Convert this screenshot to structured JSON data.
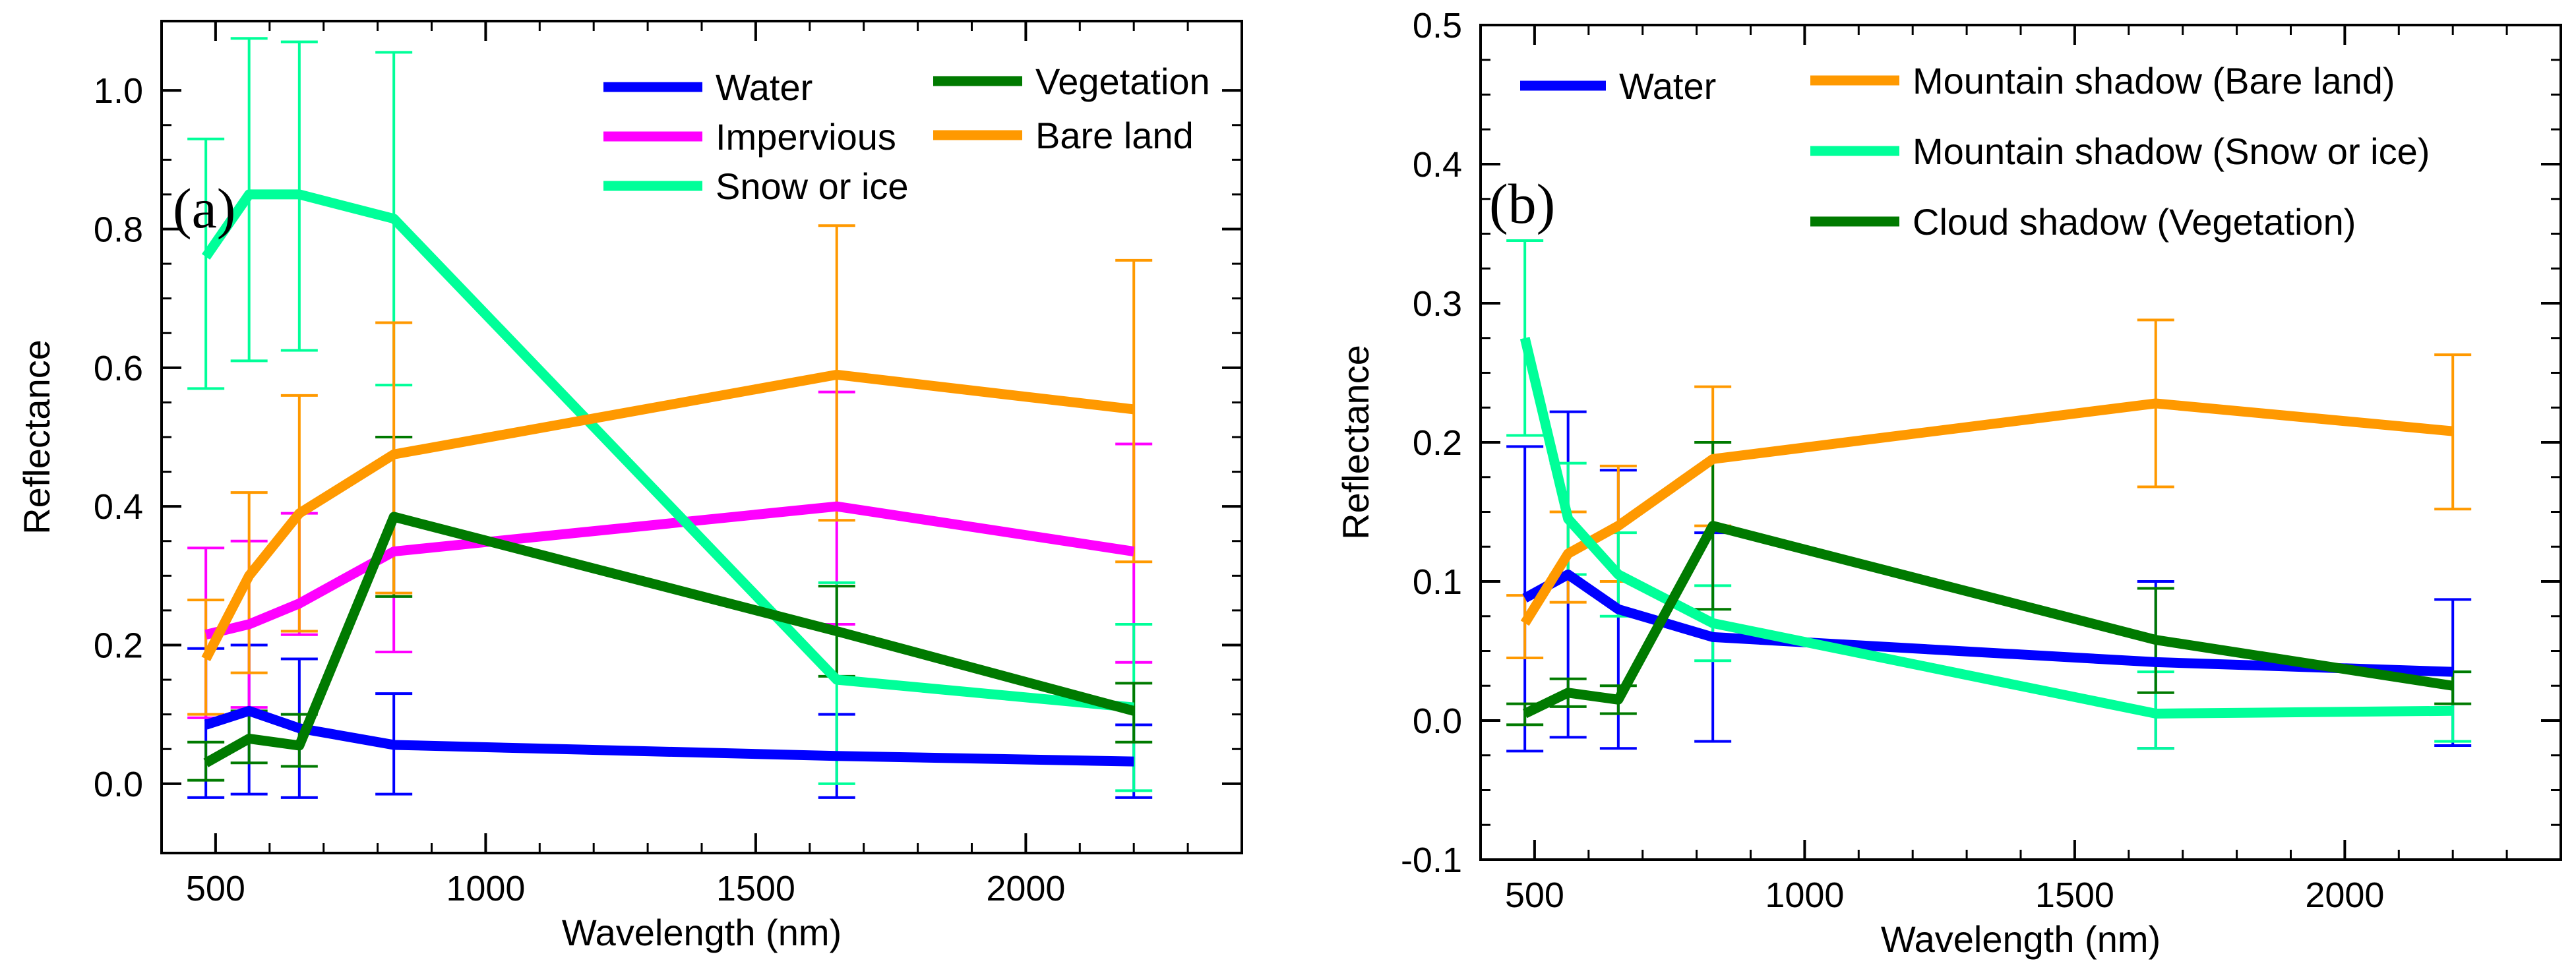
{
  "chart_data": [
    {
      "type": "line",
      "panel_label": "(a)",
      "xlabel": "Wavelength (nm)",
      "ylabel": "Reflectance",
      "xlim": [
        400,
        2400
      ],
      "ylim": [
        -0.1,
        1.1
      ],
      "xticks": [
        500,
        1000,
        1500,
        2000
      ],
      "xtick_labels": [
        "500",
        "1000",
        "1500",
        "2000"
      ],
      "yticks": [
        0.0,
        0.2,
        0.4,
        0.6,
        0.8,
        1.0
      ],
      "ytick_labels": [
        "0.0",
        "0.2",
        "0.4",
        "0.6",
        "0.8",
        "1.0"
      ],
      "x": [
        482,
        562,
        655,
        830,
        1650,
        2200
      ],
      "series": [
        {
          "name": "Water",
          "color": "#0000ff",
          "values": [
            0.085,
            0.105,
            0.08,
            0.056,
            0.04,
            0.032
          ],
          "err_high": [
            0.195,
            0.2,
            0.18,
            0.13,
            0.1,
            0.085
          ],
          "err_low": [
            -0.02,
            -0.015,
            -0.02,
            -0.015,
            -0.02,
            -0.02
          ]
        },
        {
          "name": "Impervious",
          "color": "#ff00ff",
          "values": [
            0.215,
            0.23,
            0.26,
            0.335,
            0.4,
            0.335
          ],
          "err_high": [
            0.34,
            0.35,
            0.39,
            0.5,
            0.565,
            0.49
          ],
          "err_low": [
            0.095,
            0.11,
            0.215,
            0.19,
            0.23,
            0.175
          ]
        },
        {
          "name": "Snow or ice",
          "color": "#00ff99",
          "values": [
            0.76,
            0.85,
            0.85,
            0.815,
            0.15,
            0.11
          ],
          "err_high": [
            0.93,
            1.075,
            1.07,
            1.055,
            0.29,
            0.23
          ],
          "err_low": [
            0.57,
            0.61,
            0.625,
            0.575,
            0.0,
            -0.01
          ]
        },
        {
          "name": "Vegetation",
          "color": "#007a00",
          "values": [
            0.03,
            0.065,
            0.055,
            0.385,
            0.22,
            0.105
          ],
          "err_high": [
            0.06,
            0.105,
            0.1,
            0.5,
            0.285,
            0.145
          ],
          "err_low": [
            0.005,
            0.03,
            0.025,
            0.27,
            0.155,
            0.06
          ]
        },
        {
          "name": "Bare land",
          "color": "#ff9900",
          "values": [
            0.18,
            0.3,
            0.39,
            0.475,
            0.59,
            0.54
          ],
          "err_high": [
            0.265,
            0.42,
            0.56,
            0.665,
            0.805,
            0.755
          ],
          "err_low": [
            0.1,
            0.16,
            0.22,
            0.275,
            0.38,
            0.32
          ]
        }
      ]
    },
    {
      "type": "line",
      "panel_label": "(b)",
      "xlabel": "Wavelength (nm)",
      "ylabel": "Reflectance",
      "xlim": [
        400,
        2400
      ],
      "ylim": [
        -0.1,
        0.5
      ],
      "xticks": [
        500,
        1000,
        1500,
        2000
      ],
      "xtick_labels": [
        "500",
        "1000",
        "1500",
        "2000"
      ],
      "yticks": [
        -0.1,
        0.0,
        0.1,
        0.2,
        0.3,
        0.4,
        0.5
      ],
      "ytick_labels": [
        "-0.1",
        "0.0",
        "0.1",
        "0.2",
        "0.3",
        "0.4",
        "0.5"
      ],
      "x": [
        482,
        562,
        655,
        830,
        1650,
        2200
      ],
      "series": [
        {
          "name": "Water",
          "color": "#0000ff",
          "values": [
            0.088,
            0.105,
            0.08,
            0.06,
            0.042,
            0.035
          ],
          "err_high": [
            0.197,
            0.222,
            0.18,
            0.135,
            0.1,
            0.087
          ],
          "err_low": [
            -0.022,
            -0.012,
            -0.02,
            -0.015,
            -0.02,
            -0.018
          ]
        },
        {
          "name": "Mountain shadow (Bare land)",
          "color": "#ff9900",
          "values": [
            0.07,
            0.12,
            0.14,
            0.188,
            0.228,
            0.208
          ],
          "err_high": [
            0.09,
            0.15,
            0.183,
            0.24,
            0.288,
            0.263
          ],
          "err_low": [
            0.045,
            0.085,
            0.1,
            0.14,
            0.168,
            0.152
          ]
        },
        {
          "name": "Mountain shadow (Snow or ice)",
          "color": "#00ff99",
          "values": [
            0.275,
            0.145,
            0.105,
            0.07,
            0.005,
            0.007
          ],
          "err_high": [
            0.345,
            0.185,
            0.135,
            0.097,
            0.035,
            0.035
          ],
          "err_low": [
            0.205,
            0.105,
            0.075,
            0.043,
            -0.02,
            -0.015
          ]
        },
        {
          "name": "Cloud shadow (Vegetation)",
          "color": "#007a00",
          "values": [
            0.005,
            0.02,
            0.015,
            0.14,
            0.058,
            0.025
          ],
          "err_high": [
            0.012,
            0.03,
            0.025,
            0.2,
            0.095,
            0.035
          ],
          "err_low": [
            -0.003,
            0.01,
            0.005,
            0.08,
            0.02,
            0.012
          ]
        }
      ]
    }
  ]
}
